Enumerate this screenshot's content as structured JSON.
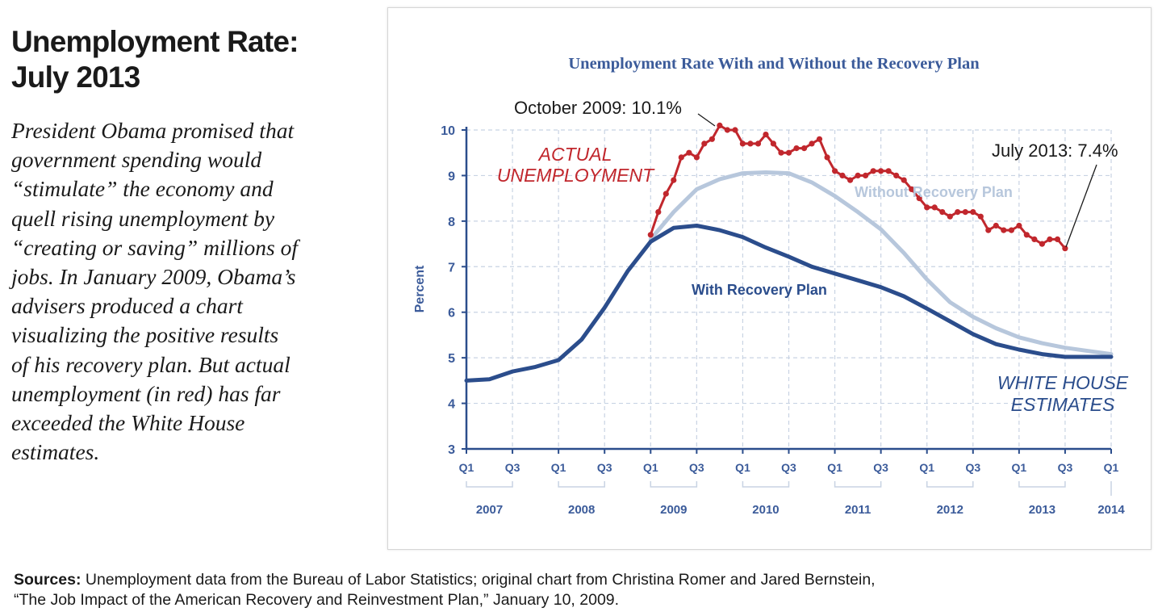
{
  "headline": {
    "line1": "Unemployment Rate:",
    "line2": "July 2013"
  },
  "body": {
    "lines": [
      "President Obama promised that",
      "government spending would",
      "“stimulate” the economy and",
      "quell rising unemployment by",
      "“creating or saving” millions of",
      "jobs. In January 2009, Obama’s",
      "advisers produced a chart",
      "visualizing the positive results",
      "of his recovery plan. But actual",
      "unemployment (in red) has far",
      "exceeded the White House",
      "estimates."
    ]
  },
  "sources": {
    "label": "Sources:",
    "line1": "Unemployment data from the Bureau of Labor Statistics; original chart from Christina Romer and Jared Bernstein,",
    "line2": "“The Job Impact of the American Recovery and Reinvestment Plan,” January 10, 2009."
  },
  "colors": {
    "actual": "#c1272d",
    "with_plan": "#2b4d8c",
    "without_plan": "#b7c7dc",
    "axis_text": "#3b5b9a",
    "grid": "#c8d3e3"
  },
  "chart_data": {
    "type": "line",
    "title": "Unemployment Rate With and Without the Recovery Plan",
    "ylabel": "Percent",
    "ylim": [
      3,
      10
    ],
    "yticks": [
      "3",
      "4",
      "5",
      "6",
      "7",
      "8",
      "9",
      "10"
    ],
    "xlim": [
      2007.0,
      2014.0
    ],
    "x_ticks": [
      "Q1",
      "Q3",
      "Q1",
      "Q3",
      "Q1",
      "Q3",
      "Q1",
      "Q3",
      "Q1",
      "Q3",
      "Q1",
      "Q3",
      "Q1",
      "Q3",
      "Q1"
    ],
    "x_years": [
      "2007",
      "2008",
      "2009",
      "2010",
      "2011",
      "2012",
      "2013",
      "2014"
    ],
    "grid": true,
    "series": [
      {
        "name": "With Recovery Plan",
        "x": [
          2007.0,
          2007.25,
          2007.5,
          2007.75,
          2008.0,
          2008.25,
          2008.5,
          2008.75,
          2009.0,
          2009.25,
          2009.5,
          2009.75,
          2010.0,
          2010.25,
          2010.5,
          2010.75,
          2011.0,
          2011.25,
          2011.5,
          2011.75,
          2012.0,
          2012.25,
          2012.5,
          2012.75,
          2013.0,
          2013.25,
          2013.5,
          2013.75,
          2014.0
        ],
        "values": [
          4.5,
          4.53,
          4.7,
          4.8,
          4.95,
          5.4,
          6.1,
          6.9,
          7.55,
          7.85,
          7.9,
          7.8,
          7.65,
          7.42,
          7.22,
          7.0,
          6.85,
          6.7,
          6.55,
          6.35,
          6.08,
          5.8,
          5.52,
          5.3,
          5.18,
          5.08,
          5.02,
          5.02,
          5.02
        ]
      },
      {
        "name": "Without Recovery Plan",
        "x": [
          2009.0,
          2009.25,
          2009.5,
          2009.75,
          2010.0,
          2010.25,
          2010.5,
          2010.75,
          2011.0,
          2011.25,
          2011.5,
          2011.75,
          2012.0,
          2012.25,
          2012.5,
          2012.75,
          2013.0,
          2013.25,
          2013.5,
          2013.75,
          2014.0
        ],
        "values": [
          7.6,
          8.2,
          8.7,
          8.92,
          9.05,
          9.07,
          9.05,
          8.85,
          8.55,
          8.2,
          7.82,
          7.3,
          6.72,
          6.22,
          5.9,
          5.65,
          5.45,
          5.32,
          5.22,
          5.15,
          5.08
        ]
      },
      {
        "name": "Actual Unemployment",
        "x": [
          2009.0,
          2009.083,
          2009.167,
          2009.25,
          2009.333,
          2009.417,
          2009.5,
          2009.583,
          2009.667,
          2009.75,
          2009.833,
          2009.917,
          2010.0,
          2010.083,
          2010.167,
          2010.25,
          2010.333,
          2010.417,
          2010.5,
          2010.583,
          2010.667,
          2010.75,
          2010.833,
          2010.917,
          2011.0,
          2011.083,
          2011.167,
          2011.25,
          2011.333,
          2011.417,
          2011.5,
          2011.583,
          2011.667,
          2011.75,
          2011.833,
          2011.917,
          2012.0,
          2012.083,
          2012.167,
          2012.25,
          2012.333,
          2012.417,
          2012.5,
          2012.583,
          2012.667,
          2012.75,
          2012.833,
          2012.917,
          2013.0,
          2013.083,
          2013.167,
          2013.25,
          2013.333,
          2013.417,
          2013.5
        ],
        "values": [
          7.7,
          8.2,
          8.6,
          8.9,
          9.4,
          9.5,
          9.4,
          9.7,
          9.8,
          10.1,
          10.0,
          10.0,
          9.7,
          9.7,
          9.7,
          9.9,
          9.7,
          9.5,
          9.5,
          9.6,
          9.6,
          9.7,
          9.8,
          9.4,
          9.1,
          9.0,
          8.9,
          9.0,
          9.0,
          9.1,
          9.1,
          9.1,
          9.0,
          8.9,
          8.7,
          8.5,
          8.3,
          8.3,
          8.2,
          8.1,
          8.2,
          8.2,
          8.2,
          8.1,
          7.8,
          7.9,
          7.8,
          7.8,
          7.9,
          7.7,
          7.6,
          7.5,
          7.6,
          7.6,
          7.4
        ]
      }
    ],
    "labels": {
      "actual_line1": "ACTUAL",
      "actual_line2": "UNEMPLOYMENT",
      "without_plan": "Without Recovery Plan",
      "with_plan": "With Recovery Plan",
      "wh_line1": "WHITE HOUSE",
      "wh_line2": "ESTIMATES"
    },
    "annotations": {
      "peak": "October 2009: 10.1%",
      "latest": "July 2013: 7.4%"
    }
  }
}
